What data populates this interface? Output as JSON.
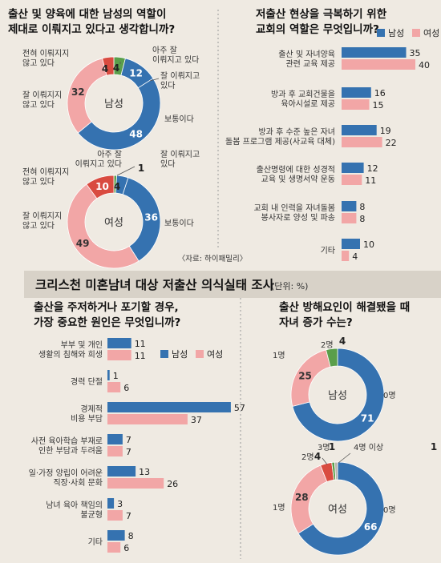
{
  "colors": {
    "male": "#3572b0",
    "female": "#f2a6a6",
    "green": "#5a9e4a",
    "red": "#d94b40",
    "gray": "#b9b4ab",
    "background": "#efeae2",
    "headerband": "#d8d2c8"
  },
  "legend": {
    "male": "남성",
    "female": "여성"
  },
  "source": "〈자료: 하이패밀리〉",
  "section_title": "크리스천 미혼남녀 대상 저출산 의식실태 조사",
  "unit": "(단위: %)",
  "chart_data": [
    {
      "id": "q1",
      "type": "pie",
      "title": "출산 및 양육에 대한 남성의 역할이 제대로 이뤄지고 있다고 생각합니까?",
      "title_lines": [
        "출산 및 양육에 대한 남성의 역할이",
        "제대로 이뤄지고 있다고 생각합니까?"
      ],
      "donuts": [
        {
          "center_label": "남성",
          "slices": [
            {
              "label": "아주 잘 이뤄지고 있다",
              "label_lines": [
                "아주 잘",
                "이뤄지고 있다"
              ],
              "value": 4,
              "color": "green"
            },
            {
              "label": "잘 이뤄지고 있다",
              "label_lines": [
                "잘 이뤄지고",
                "있다"
              ],
              "value": 12,
              "color": "male"
            },
            {
              "label": "보통이다",
              "label_lines": [
                "보통이다"
              ],
              "value": 48,
              "color": "male"
            },
            {
              "label": "잘 이뤄지지 않고 있다",
              "label_lines": [
                "잘 이뤄지지",
                "않고 있다"
              ],
              "value": 32,
              "color": "female"
            },
            {
              "label": "전혀 이뤄지지 않고 있다",
              "label_lines": [
                "전혀 이뤄지지",
                "않고 있다"
              ],
              "value": 4,
              "color": "red"
            }
          ]
        },
        {
          "center_label": "여성",
          "slices": [
            {
              "label": "아주 잘 이뤄지고 있다",
              "label_lines": [
                "아주 잘",
                "이뤄지고 있다"
              ],
              "value": 1,
              "color": "green"
            },
            {
              "label": "잘 이뤄지고 있다",
              "label_lines": [
                "잘 이뤄지고",
                "있다"
              ],
              "value": 4,
              "color": "male"
            },
            {
              "label": "보통이다",
              "label_lines": [
                "보통이다"
              ],
              "value": 36,
              "color": "male"
            },
            {
              "label": "잘 이뤄지지 않고 있다",
              "label_lines": [
                "잘 이뤄지지",
                "않고 있다"
              ],
              "value": 49,
              "color": "female"
            },
            {
              "label": "전혀 이뤄지지 않고 있다",
              "label_lines": [
                "전혀 이뤄지지",
                "않고 있다"
              ],
              "value": 10,
              "color": "red"
            }
          ]
        }
      ]
    },
    {
      "id": "q2",
      "type": "bar",
      "title": "저출산 현상을 극복하기 위한 교회의 역할은 무엇입니까?",
      "title_lines": [
        "저출산 현상을 극복하기 위한",
        "교회의 역할은 무엇입니까?"
      ],
      "categories": [
        "출산 및 자녀양육 관련 교육 제공",
        "방과 후 교회건물을 육아시설로 제공",
        "방과 후 수준 높은 자녀 돌봄 프로그램 제공(사교육 대체)",
        "출산명령에 대한 성경적 교육 및 생명서약 운동",
        "교회 내 인력을 자녀돌봄 봉사자로 양성 및 파송",
        "기타"
      ],
      "category_lines": [
        [
          "출산 및 자녀양육",
          "관련 교육 제공"
        ],
        [
          "방과 후 교회건물을",
          "육아시설로 제공"
        ],
        [
          "방과 후 수준 높은 자녀",
          "돌봄 프로그램 제공(사교육 대체)"
        ],
        [
          "출산명령에 대한 성경적",
          "교육 및 생명서약 운동"
        ],
        [
          "교회 내 인력을 자녀돌봄",
          "봉사자로 양성 및 파송"
        ],
        [
          "기타"
        ]
      ],
      "series": [
        {
          "name": "남성",
          "values": [
            35,
            16,
            19,
            12,
            8,
            10
          ]
        },
        {
          "name": "여성",
          "values": [
            40,
            15,
            22,
            11,
            8,
            4
          ]
        }
      ]
    },
    {
      "id": "q3",
      "type": "bar",
      "title": "출산을 주저하거나 포기할 경우, 가장 중요한 원인은 무엇입니까?",
      "title_lines": [
        "출산을 주저하거나 포기할 경우,",
        "가장 중요한 원인은 무엇입니까?"
      ],
      "categories": [
        "부부 및 개인 생활의 침해와 희생",
        "경력 단절",
        "경제적 비용 부담",
        "사전 육아학습 부재로 인한 부담과 두려움",
        "일·가정 양립이 어려운 직장·사회 문화",
        "남녀 육아 책임의 불균형",
        "기타"
      ],
      "category_lines": [
        [
          "부부 및 개인",
          "생활의 침해와 희생"
        ],
        [
          "경력 단절"
        ],
        [
          "경제적",
          "비용 부담"
        ],
        [
          "사전 육아학습 부재로",
          "인한 부담과 두려움"
        ],
        [
          "일·가정 양립이 어려운",
          "직장·사회 문화"
        ],
        [
          "남녀 육아 책임의",
          "불균형"
        ],
        [
          "기타"
        ]
      ],
      "series": [
        {
          "name": "남성",
          "values": [
            11,
            1,
            57,
            7,
            13,
            3,
            8
          ]
        },
        {
          "name": "여성",
          "values": [
            11,
            6,
            37,
            7,
            26,
            7,
            6
          ]
        }
      ]
    },
    {
      "id": "q4",
      "type": "pie",
      "title": "출산 방해요인이 해결됐을 때 자녀 증가 수는?",
      "title_lines": [
        "출산 방해요인이 해결됐을 때",
        "자녀 증가 수는?"
      ],
      "donuts": [
        {
          "center_label": "남성",
          "slices": [
            {
              "label": "0명",
              "value": 71,
              "color": "male"
            },
            {
              "label": "1명",
              "value": 25,
              "color": "female"
            },
            {
              "label": "2명",
              "value": 4,
              "color": "green"
            }
          ]
        },
        {
          "center_label": "여성",
          "slices": [
            {
              "label": "0명",
              "value": 66,
              "color": "male"
            },
            {
              "label": "1명",
              "value": 28,
              "color": "female"
            },
            {
              "label": "2명",
              "value": 4,
              "color": "red"
            },
            {
              "label": "3명",
              "value": 1,
              "color": "green"
            },
            {
              "label": "4명 이상",
              "value": 1,
              "color": "gray"
            }
          ]
        }
      ]
    }
  ]
}
